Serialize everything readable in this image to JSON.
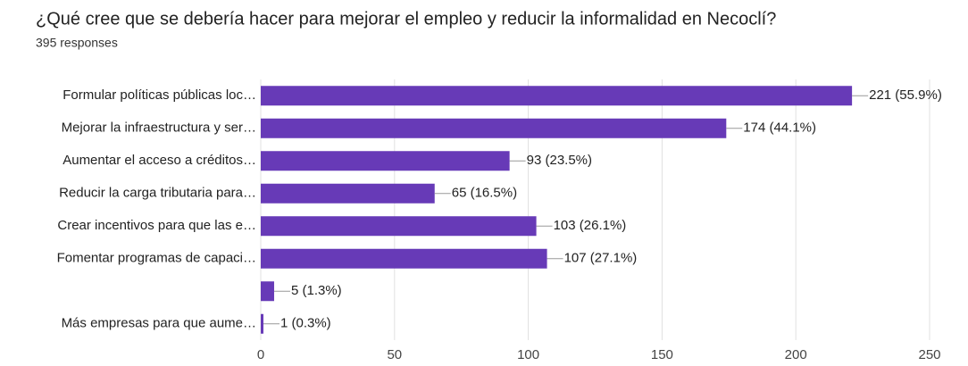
{
  "chart_data": {
    "type": "bar",
    "orientation": "horizontal",
    "title": "¿Qué cree que se debería hacer para mejorar el empleo y reducir la informalidad en Necoclí?",
    "subtitle": "395 responses",
    "categories": [
      "Formular políticas públicas loc…",
      "Mejorar la infraestructura y ser…",
      "Aumentar el acceso a créditos…",
      "Reducir la carga tributaria para…",
      "Crear incentivos para que las e…",
      "Fomentar programas de capaci…",
      null,
      "Más empresas para que aume…"
    ],
    "values": [
      221,
      174,
      93,
      65,
      103,
      107,
      5,
      1
    ],
    "value_labels": [
      "221 (55.9%)",
      "174 (44.1%)",
      "93 (23.5%)",
      "65 (16.5%)",
      "103 (26.1%)",
      "107 (27.1%)",
      "5 (1.3%)",
      "1 (0.3%)"
    ],
    "color": "#673ab7",
    "xlim": [
      0,
      250
    ],
    "xticks": [
      0,
      50,
      100,
      150,
      200,
      250
    ],
    "grid": true
  }
}
